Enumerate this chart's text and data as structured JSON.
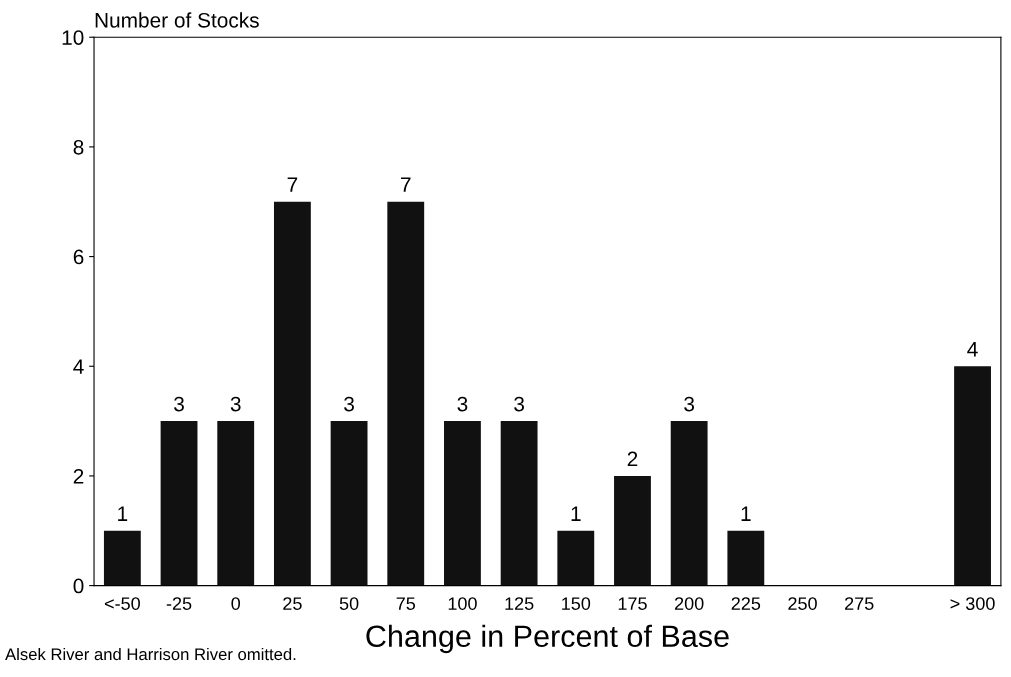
{
  "chart_data": {
    "type": "bar",
    "ylabel": "Number of Stocks",
    "xlabel": "Change in Percent of Base",
    "categories": [
      "<-50",
      "-25",
      "0",
      "25",
      "50",
      "75",
      "100",
      "125",
      "150",
      "175",
      "200",
      "225",
      "250",
      "275",
      null,
      "> 300"
    ],
    "values": [
      1,
      3,
      3,
      7,
      3,
      7,
      3,
      3,
      1,
      2,
      3,
      1,
      0,
      0,
      0,
      4
    ],
    "value_labels": [
      "1",
      "3",
      "3",
      "7",
      "3",
      "7",
      "3",
      "3",
      "1",
      "2",
      "3",
      "1",
      null,
      null,
      null,
      "4"
    ],
    "color": "#111111",
    "ylim": [
      0,
      10
    ],
    "yticks": [
      0,
      2,
      4,
      6,
      8,
      10
    ],
    "grid": false,
    "annotations": [
      "Alsek River and Harrison River omitted."
    ]
  }
}
